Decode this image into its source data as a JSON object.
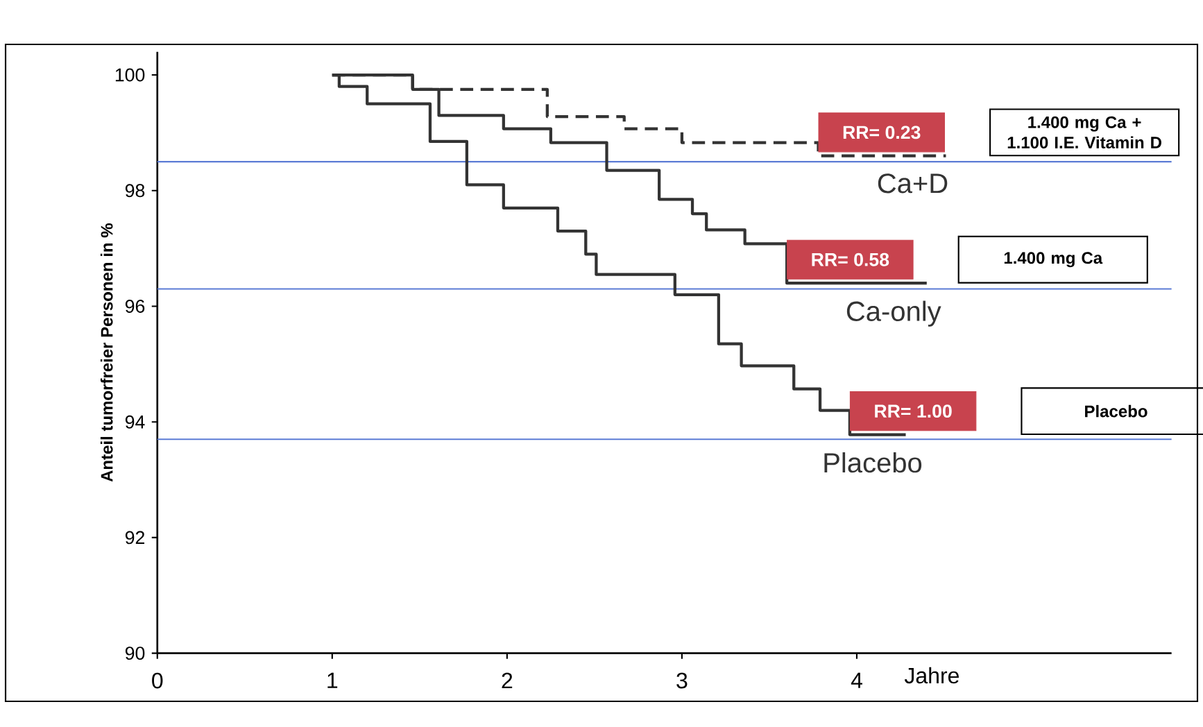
{
  "chart_data": {
    "type": "step",
    "ylabel": "Anteil tumorfreier Personen in %",
    "xlabel": "Jahre",
    "xlim": [
      0,
      5.8
    ],
    "ylim": [
      90,
      100.4
    ],
    "xticks": [
      0,
      1,
      2,
      3,
      4
    ],
    "yticks": [
      90,
      92,
      94,
      96,
      98,
      100
    ],
    "grid": false,
    "series": [
      {
        "name": "Ca+D",
        "color": "#333333",
        "line_style": "dashed",
        "x": [
          1.0,
          1.46,
          2.23,
          2.67,
          3.0,
          3.78,
          4.51
        ],
        "values": [
          100,
          99.75,
          99.28,
          99.07,
          98.83,
          98.6,
          98.6
        ]
      },
      {
        "name": "Ca-only",
        "color": "#333333",
        "line_style": "solid",
        "x": [
          1.0,
          1.46,
          1.61,
          1.98,
          2.25,
          2.57,
          2.87,
          3.06,
          3.14,
          3.36,
          3.6,
          4.4
        ],
        "values": [
          100,
          99.75,
          99.3,
          99.07,
          98.83,
          98.35,
          97.85,
          97.6,
          97.32,
          97.08,
          96.4,
          96.4
        ]
      },
      {
        "name": "Placebo",
        "color": "#333333",
        "line_style": "solid",
        "x": [
          1.0,
          1.04,
          1.2,
          1.56,
          1.77,
          1.98,
          2.29,
          2.45,
          2.51,
          2.96,
          3.21,
          3.34,
          3.64,
          3.79,
          3.96,
          4.28
        ],
        "values": [
          100,
          99.8,
          99.5,
          98.85,
          98.1,
          97.7,
          97.3,
          96.9,
          96.55,
          96.2,
          95.35,
          94.97,
          94.57,
          94.2,
          93.78,
          93.78
        ]
      }
    ],
    "ref_lines": [
      {
        "axis": "y",
        "value": 98.5,
        "color": "#5b7bd5"
      },
      {
        "axis": "y",
        "value": 96.3,
        "color": "#5b7bd5"
      },
      {
        "axis": "y",
        "value": 93.7,
        "color": "#5b7bd5"
      }
    ],
    "annotations": [
      "RR= 0.23",
      "1.400 mg Ca + 1.100 I.E. Vitamin D",
      "RR= 0.58",
      "1.400 mg Ca",
      "RR= 1.00",
      "Placebo"
    ]
  }
}
